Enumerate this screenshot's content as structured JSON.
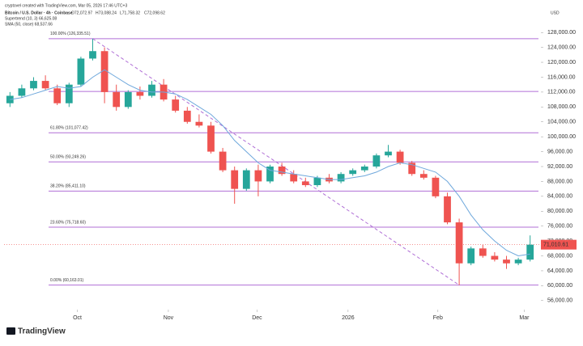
{
  "header": {
    "credit": "cryptovel created with TradingView.com, Mar 05, 2026 17:46 UTC+3",
    "symbol": "Bitcoin / U.S. Dollar · 4h · Coinbase",
    "ohlc": [
      "O72,072.97",
      "H73,088.24",
      "L71,758.32",
      "C72,098.62"
    ],
    "indicators": [
      "Supertrend (10, 3)  66,625.08",
      "SMA (50, close)  68,537.66"
    ],
    "currency": "USD",
    "brand": "TradingView"
  },
  "chart_data": {
    "type": "candlestick",
    "up_color": "#26a69a",
    "down_color": "#ef5350",
    "open": [
      109000,
      111000,
      113000,
      115000,
      113000,
      109000,
      114000,
      121000,
      123000,
      112000,
      108000,
      112000,
      111000,
      114000,
      110000,
      107000,
      104000,
      103000,
      96000,
      91000,
      86000,
      91000,
      88000,
      92000,
      90000,
      88000,
      87000,
      89000,
      88000,
      90000,
      91000,
      92000,
      95000,
      96000,
      93000,
      90000,
      89000,
      84000,
      77000,
      66000,
      70000,
      68000,
      67000,
      66000,
      67000
    ],
    "high": [
      112000,
      114000,
      116000,
      116500,
      114000,
      114500,
      121500,
      126335.51,
      124000,
      114000,
      112500,
      113500,
      115000,
      115500,
      111000,
      108000,
      106000,
      104000,
      97000,
      92000,
      91500,
      92500,
      92500,
      93000,
      91000,
      89000,
      89500,
      90000,
      90500,
      91500,
      92500,
      95500,
      97800,
      96500,
      93500,
      91000,
      89500,
      85000,
      78000,
      70500,
      71000,
      69000,
      68000,
      67500,
      73500
    ],
    "low": [
      108000,
      110500,
      112500,
      112500,
      108500,
      108000,
      113500,
      120500,
      109000,
      107000,
      107500,
      110000,
      110500,
      109500,
      106500,
      103500,
      102500,
      95500,
      90500,
      82000,
      85500,
      84000,
      87500,
      89500,
      87500,
      86500,
      86500,
      87500,
      87500,
      89500,
      90500,
      91500,
      94500,
      92500,
      89500,
      88500,
      83500,
      76500,
      60163.01,
      65500,
      67500,
      66500,
      64500,
      65500,
      66500
    ],
    "close": [
      111000,
      113000,
      115000,
      113000,
      109000,
      114000,
      121000,
      123000,
      112000,
      108000,
      112000,
      111000,
      114000,
      110000,
      107000,
      104000,
      103000,
      96000,
      91000,
      86000,
      91000,
      88000,
      92000,
      90000,
      88000,
      87000,
      89000,
      88000,
      90000,
      91000,
      92000,
      95000,
      96000,
      93000,
      90000,
      89000,
      84000,
      77000,
      66000,
      70000,
      68000,
      67000,
      66000,
      67000,
      71010.61
    ],
    "sma": {
      "name": "SMA (50, close)",
      "color": "#6fa8dc",
      "values": [
        110000,
        110500,
        111500,
        112500,
        113500,
        113000,
        113500,
        116000,
        118000,
        116000,
        114000,
        112500,
        112000,
        112000,
        111500,
        110000,
        108000,
        106000,
        103000,
        99000,
        96000,
        93000,
        91000,
        90500,
        90000,
        89500,
        89000,
        88500,
        88500,
        89000,
        89500,
        90500,
        92000,
        93000,
        92500,
        91500,
        90500,
        88000,
        84000,
        79000,
        75000,
        72000,
        69500,
        68000,
        68500
      ]
    },
    "fib": {
      "color": "#b06fd6",
      "levels": [
        {
          "value": 126335.51,
          "label": "100.00% (126,335.51)"
        },
        {
          "value": 112172
        },
        {
          "value": 101077.42,
          "label": "61.80% (101,077.42)"
        },
        {
          "value": 93249.26,
          "label": "50.00% (93,249.26)"
        },
        {
          "value": 85411.1,
          "label": "38.20% (85,411.10)"
        },
        {
          "value": 75718.6,
          "label": "23.60% (75,718.60)"
        },
        {
          "value": 60163.01,
          "label": "0.00% (60,163.01)"
        }
      ]
    },
    "last_price": {
      "value": 71010.61,
      "label": "71,010.61"
    },
    "xlim": [
      0,
      45
    ],
    "xticks": [
      {
        "value": 6.2,
        "label": "Oct"
      },
      {
        "value": 13.9,
        "label": "Nov"
      },
      {
        "value": 21.4,
        "label": "Dec"
      },
      {
        "value": 29.1,
        "label": "2026"
      },
      {
        "value": 36.7,
        "label": "Feb"
      },
      {
        "value": 44.0,
        "label": "Mar"
      }
    ],
    "ylim": [
      54000,
      130000
    ],
    "yticks": [
      {
        "value": 56000,
        "label": "56,000.00"
      },
      {
        "value": 60000,
        "label": "60,000.00"
      },
      {
        "value": 64000,
        "label": "64,000.00"
      },
      {
        "value": 68000,
        "label": "68,000.00"
      },
      {
        "value": 72000,
        "label": "72,000.00"
      },
      {
        "value": 76000,
        "label": "76,000.00"
      },
      {
        "value": 80000,
        "label": "80,000.00"
      },
      {
        "value": 84000,
        "label": "84,000.00"
      },
      {
        "value": 88000,
        "label": "88,000.00"
      },
      {
        "value": 92000,
        "label": "92,000.00"
      },
      {
        "value": 96000,
        "label": "96,000.00"
      },
      {
        "value": 100000,
        "label": "100,000.00"
      },
      {
        "value": 104000,
        "label": "104,000.00"
      },
      {
        "value": 108000,
        "label": "108,000.00"
      },
      {
        "value": 112000,
        "label": "112,000.00"
      },
      {
        "value": 116000,
        "label": "116,000.00"
      },
      {
        "value": 120000,
        "label": "120,000.00"
      },
      {
        "value": 124000,
        "label": "124,000.00"
      },
      {
        "value": 128000,
        "label": "128,000.00"
      }
    ]
  }
}
